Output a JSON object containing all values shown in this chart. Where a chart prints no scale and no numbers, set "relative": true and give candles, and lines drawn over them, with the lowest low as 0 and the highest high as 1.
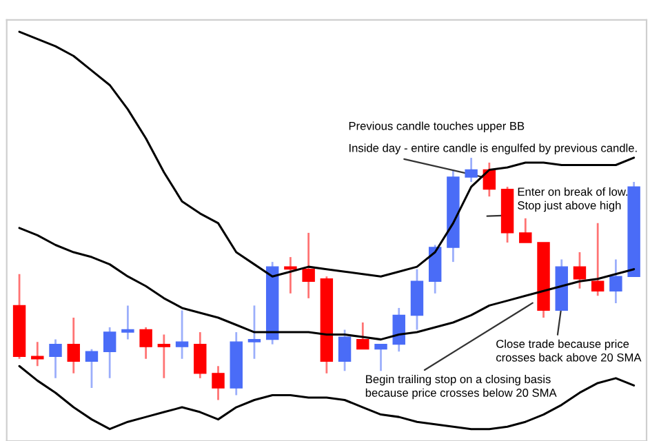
{
  "chart_data": {
    "type": "candlestick",
    "relative": true,
    "categories": [
      null,
      null,
      null,
      null,
      null,
      null,
      null,
      null,
      null,
      null,
      null,
      null,
      null,
      null,
      null,
      null,
      null,
      null,
      null,
      null,
      null,
      null,
      null,
      null,
      null,
      null,
      null,
      null,
      null,
      null,
      null,
      null,
      null,
      null,
      null
    ],
    "ohlc": [
      [
        0.39,
        0.52,
        0.17,
        0.18
      ],
      [
        0.18,
        0.24,
        0.14,
        0.17
      ],
      [
        0.18,
        0.25,
        0.09,
        0.23
      ],
      [
        0.23,
        0.34,
        0.11,
        0.16
      ],
      [
        0.16,
        0.21,
        0.05,
        0.2
      ],
      [
        0.2,
        0.3,
        0.09,
        0.28
      ],
      [
        0.28,
        0.39,
        0.25,
        0.29
      ],
      [
        0.29,
        0.3,
        0.17,
        0.22
      ],
      [
        0.23,
        0.27,
        0.09,
        0.22
      ],
      [
        0.22,
        0.37,
        0.17,
        0.24
      ],
      [
        0.23,
        0.28,
        0.09,
        0.11
      ],
      [
        0.11,
        0.14,
        0,
        0.05
      ],
      [
        0.05,
        0.28,
        0.02,
        0.24
      ],
      [
        0.24,
        0.39,
        0.17,
        0.25
      ],
      [
        0.25,
        0.57,
        0.23,
        0.55
      ],
      [
        0.55,
        0.59,
        0.44,
        0.54
      ],
      [
        0.54,
        0.69,
        0.42,
        0.49
      ],
      [
        0.5,
        0.51,
        0.11,
        0.16
      ],
      [
        0.16,
        0.29,
        0.12,
        0.26
      ],
      [
        0.25,
        0.32,
        0.21,
        0.21
      ],
      [
        0.21,
        0.23,
        0.12,
        0.23
      ],
      [
        0.23,
        0.38,
        0.2,
        0.35
      ],
      [
        0.35,
        0.54,
        0.29,
        0.49
      ],
      [
        0.49,
        0.64,
        0.44,
        0.63
      ],
      [
        0.63,
        0.95,
        0.57,
        0.92
      ],
      [
        0.92,
        1,
        0.9,
        0.95
      ],
      [
        0.95,
        0.98,
        0.84,
        0.87
      ],
      [
        0.87,
        0.88,
        0.65,
        0.69
      ],
      [
        0.69,
        0.75,
        0.65,
        0.65
      ],
      [
        0.65,
        0.65,
        0.34,
        0.37
      ],
      [
        0.37,
        0.58,
        0.37,
        0.55
      ],
      [
        0.55,
        0.61,
        0.46,
        0.5
      ],
      [
        0.49,
        0.73,
        0.43,
        0.45
      ],
      [
        0.45,
        0.58,
        0.4,
        0.51
      ],
      [
        0.51,
        0.9,
        0.51,
        0.88
      ]
    ],
    "colors": [
      "#ff0000",
      "#ff0000",
      "#4a6cf7",
      "#ff0000",
      "#4a6cf7",
      "#4a6cf7",
      "#4a6cf7",
      "#ff0000",
      "#ff0000",
      "#4a6cf7",
      "#ff0000",
      "#ff0000",
      "#4a6cf7",
      "#4a6cf7",
      "#4a6cf7",
      "#ff0000",
      "#ff0000",
      "#ff0000",
      "#4a6cf7",
      "#ff0000",
      "#4a6cf7",
      "#4a6cf7",
      "#4a6cf7",
      "#4a6cf7",
      "#4a6cf7",
      "#4a6cf7",
      "#ff0000",
      "#ff0000",
      "#ff0000",
      "#ff0000",
      "#4a6cf7",
      "#ff0000",
      "#ff0000",
      "#4a6cf7",
      "#4a6cf7"
    ],
    "series": [
      {
        "type": "line",
        "color": "#000000",
        "values": [
          1.52,
          1.49,
          1.46,
          1.42,
          1.36,
          1.3,
          1.2,
          1.08,
          0.94,
          0.82,
          0.77,
          0.73,
          0.61,
          0.56,
          0.51,
          0.53,
          0.55,
          0.54,
          0.53,
          0.52,
          0.51,
          0.53,
          0.55,
          0.61,
          0.73,
          0.88,
          0.95,
          0.96,
          0.98,
          0.98,
          0.97,
          0.97,
          0.97,
          0.97,
          1.0
        ]
      },
      {
        "type": "line",
        "color": "#000000",
        "values": [
          0.71,
          0.68,
          0.64,
          0.61,
          0.59,
          0.56,
          0.51,
          0.47,
          0.42,
          0.38,
          0.36,
          0.34,
          0.31,
          0.28,
          0.28,
          0.28,
          0.28,
          0.27,
          0.27,
          0.26,
          0.25,
          0.27,
          0.28,
          0.3,
          0.32,
          0.35,
          0.39,
          0.41,
          0.43,
          0.45,
          0.47,
          0.49,
          0.5,
          0.52,
          0.54
        ]
      },
      {
        "type": "line",
        "color": "#000000",
        "values": [
          0.14,
          0.08,
          0.03,
          -0.03,
          -0.08,
          -0.12,
          -0.09,
          -0.07,
          -0.05,
          -0.03,
          -0.05,
          -0.08,
          -0.03,
          0,
          0.02,
          0.02,
          0.01,
          0.01,
          0,
          -0.03,
          -0.06,
          -0.07,
          -0.09,
          -0.1,
          -0.11,
          -0.12,
          -0.12,
          -0.11,
          -0.09,
          -0.06,
          -0.02,
          0.03,
          0.07,
          0.09,
          0.06
        ]
      }
    ],
    "annotations": [
      "Previous candle touches upper BB",
      "Inside day - entire candle is engulfed by previous candle.",
      "Enter on break of low.\nStop just above high",
      "Close trade because price\ncrosses back above 20 SMA",
      "Begin trailing stop on a closing basis\nbecause price crosses below 20 SMA"
    ]
  }
}
